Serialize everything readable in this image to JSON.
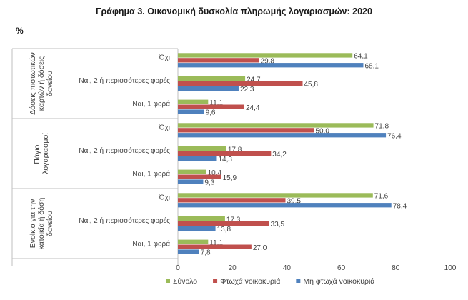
{
  "chart_data": {
    "type": "bar",
    "orientation": "horizontal",
    "title": "Γράφημα 3. Οικονομική δυσκολία πληρωμής λογαριασμών: 2020",
    "unit": "%",
    "xlim": [
      0,
      100
    ],
    "x_ticks": [
      "0",
      "20",
      "40",
      "60",
      "80",
      "100"
    ],
    "grid": false,
    "legend_position": "bottom",
    "series": [
      {
        "name": "Σύνολο",
        "color": "#9bbb59"
      },
      {
        "name": "Φτωχά νοικοκυριά",
        "color": "#c0504d"
      },
      {
        "name": "Μη φτωχά νοικοκυριά",
        "color": "#4f81bd"
      }
    ],
    "groups": [
      {
        "name": "Δόσεις πιστωτικών καρτών ή δόσεις δανείου",
        "name_lines": [
          "Δόσεις πιστωτικών",
          "καρτών ή δόσεις",
          "δανείου"
        ],
        "categories": [
          {
            "label": "Όχι",
            "values": [
              64.1,
              29.8,
              68.1
            ],
            "labels": [
              "64,1",
              "29,8",
              "68,1"
            ]
          },
          {
            "label": "Ναι, 2 ή περισσότερες φορές",
            "values": [
              24.7,
              45.8,
              22.3
            ],
            "labels": [
              "24,7",
              "45,8",
              "22,3"
            ]
          },
          {
            "label": "Ναι, 1 φορά",
            "values": [
              11.1,
              24.4,
              9.6
            ],
            "labels": [
              "11,1",
              "24,4",
              "9,6"
            ]
          }
        ]
      },
      {
        "name": "Πάγιοι λογαριασμοί",
        "name_lines": [
          "Πάγιοι",
          "λογαριασμοί"
        ],
        "categories": [
          {
            "label": "Όχι",
            "values": [
              71.8,
              50.0,
              76.4
            ],
            "labels": [
              "71,8",
              "50,0",
              "76,4"
            ]
          },
          {
            "label": "Ναι, 2 ή περισσότερες φορές",
            "values": [
              17.8,
              34.2,
              14.3
            ],
            "labels": [
              "17,8",
              "34,2",
              "14,3"
            ]
          },
          {
            "label": "Ναι, 1 φορά",
            "values": [
              10.4,
              15.9,
              9.3
            ],
            "labels": [
              "10,4",
              "15,9",
              "9,3"
            ]
          }
        ]
      },
      {
        "name": "Ενοίκιο για την κατοικία ή δόση δανείου",
        "name_lines": [
          "Ενοίκιο για την",
          "κατοικία ή δόση",
          "δανείου"
        ],
        "categories": [
          {
            "label": "Όχι",
            "values": [
              71.6,
              39.5,
              78.4
            ],
            "labels": [
              "71,6",
              "39,5",
              "78,4"
            ]
          },
          {
            "label": "Ναι, 2 ή περισσότερες φορές",
            "values": [
              17.3,
              33.5,
              13.8
            ],
            "labels": [
              "17,3",
              "33,5",
              "13,8"
            ]
          },
          {
            "label": "Ναι, 1 φορά",
            "values": [
              11.1,
              27.0,
              7.8
            ],
            "labels": [
              "11,1",
              "27,0",
              "7,8"
            ]
          }
        ]
      }
    ]
  }
}
